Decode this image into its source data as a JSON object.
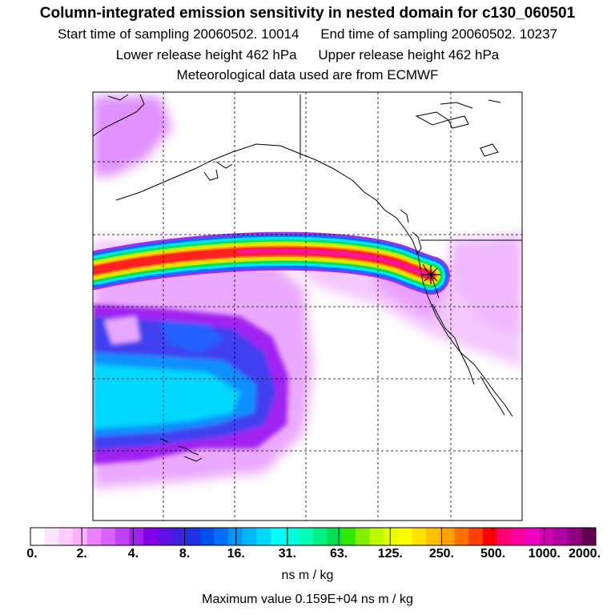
{
  "title": {
    "line1": "Column-integrated emission sensitivity in nested domain for c130_060501",
    "start_label": "Start time of sampling",
    "start_value": "20060502. 10014",
    "end_label": "End time of sampling",
    "end_value": "20060502. 10237",
    "lower_label": "Lower release height",
    "lower_value": "462 hPa",
    "upper_label": "Upper release height",
    "upper_value": "462 hPa",
    "line4": "Meteorological data used are from ECMWF"
  },
  "map": {
    "release_marker": "asterisk-icon",
    "gridlines": "dashed",
    "colors": {
      "plume_core": "#ff1493",
      "plume_red": "#ff2020",
      "plume_yellow": "#ffd800",
      "plume_green": "#00e060",
      "cyan": "#00e8ff",
      "blue": "#2070ff",
      "violet": "#9020e0",
      "light_violet": "#e080ff"
    }
  },
  "colorbar": {
    "colors": [
      "#ffffff",
      "#ffe6ff",
      "#ffccff",
      "#ffb0ff",
      "#e880ff",
      "#d860ff",
      "#c040f8",
      "#a020f0",
      "#8000e8",
      "#6010e0",
      "#4020e0",
      "#2030e8",
      "#0050f0",
      "#0070f8",
      "#0098ff",
      "#00b8ff",
      "#00d8ff",
      "#00ffff",
      "#00ffd8",
      "#00ffb0",
      "#00f080",
      "#00e050",
      "#30e800",
      "#80f000",
      "#c0f800",
      "#e8ff00",
      "#ffff00",
      "#ffe000",
      "#ffc000",
      "#ffa000",
      "#ff7000",
      "#ff4000",
      "#ff0000",
      "#ff0070",
      "#ff00a0",
      "#f000c0",
      "#d000b0",
      "#b000a0",
      "#900080",
      "#600050"
    ],
    "labels": [
      "0.",
      "2.",
      "4.",
      "8.",
      "16.",
      "31.",
      "63.",
      "125.",
      "250.",
      "500.",
      "1000.",
      "2000."
    ],
    "unit": "ns m / kg"
  },
  "max_value_text": "Maximum value  0.159E+04 ns m / kg"
}
